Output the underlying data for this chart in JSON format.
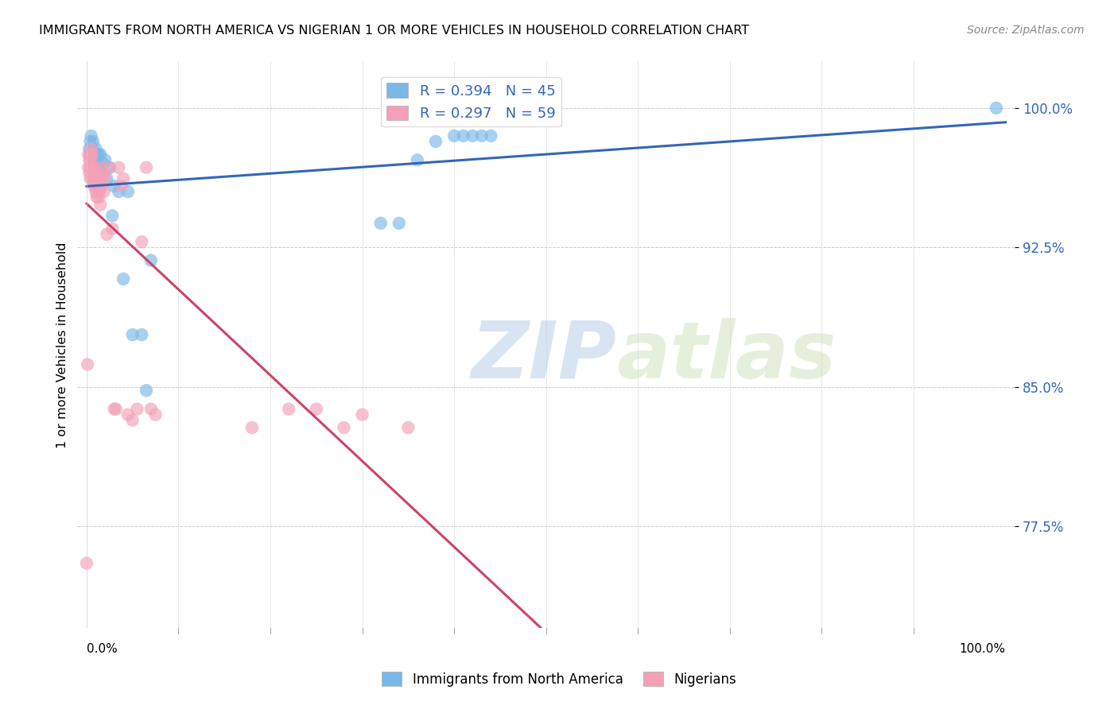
{
  "title": "IMMIGRANTS FROM NORTH AMERICA VS NIGERIAN 1 OR MORE VEHICLES IN HOUSEHOLD CORRELATION CHART",
  "source": "Source: ZipAtlas.com",
  "ylabel": "1 or more Vehicles in Household",
  "y_tick_labels": [
    "77.5%",
    "85.0%",
    "92.5%",
    "100.0%"
  ],
  "y_tick_values": [
    0.775,
    0.85,
    0.925,
    1.0
  ],
  "legend_blue_label": "R = 0.394   N = 45",
  "legend_pink_label": "R = 0.297   N = 59",
  "watermark_zip": "ZIP",
  "watermark_atlas": "atlas",
  "blue_color": "#7ab8e8",
  "pink_color": "#f4a0b8",
  "blue_line_color": "#3366bb",
  "pink_line_color": "#cc4466",
  "blue_scatter_x": [
    0.003,
    0.004,
    0.004,
    0.005,
    0.005,
    0.006,
    0.006,
    0.007,
    0.007,
    0.008,
    0.008,
    0.009,
    0.009,
    0.01,
    0.01,
    0.011,
    0.011,
    0.012,
    0.013,
    0.014,
    0.015,
    0.016,
    0.018,
    0.02,
    0.022,
    0.025,
    0.028,
    0.03,
    0.035,
    0.04,
    0.045,
    0.05,
    0.06,
    0.065,
    0.07,
    0.32,
    0.34,
    0.36,
    0.38,
    0.4,
    0.41,
    0.42,
    0.43,
    0.44,
    0.99
  ],
  "blue_scatter_y": [
    0.978,
    0.982,
    0.975,
    0.985,
    0.972,
    0.978,
    0.968,
    0.975,
    0.982,
    0.968,
    0.975,
    0.972,
    0.965,
    0.978,
    0.972,
    0.968,
    0.975,
    0.965,
    0.975,
    0.968,
    0.975,
    0.965,
    0.97,
    0.972,
    0.962,
    0.968,
    0.942,
    0.958,
    0.955,
    0.908,
    0.955,
    0.878,
    0.878,
    0.848,
    0.918,
    0.938,
    0.938,
    0.972,
    0.982,
    0.985,
    0.985,
    0.985,
    0.985,
    0.985,
    1.0
  ],
  "pink_scatter_x": [
    0.0,
    0.001,
    0.002,
    0.002,
    0.003,
    0.003,
    0.004,
    0.004,
    0.004,
    0.005,
    0.005,
    0.005,
    0.006,
    0.006,
    0.006,
    0.007,
    0.007,
    0.008,
    0.008,
    0.009,
    0.009,
    0.01,
    0.01,
    0.011,
    0.011,
    0.012,
    0.012,
    0.013,
    0.013,
    0.014,
    0.014,
    0.015,
    0.015,
    0.016,
    0.017,
    0.018,
    0.019,
    0.02,
    0.022,
    0.025,
    0.028,
    0.03,
    0.032,
    0.035,
    0.038,
    0.04,
    0.045,
    0.05,
    0.055,
    0.06,
    0.065,
    0.07,
    0.075,
    0.18,
    0.22,
    0.25,
    0.28,
    0.3,
    0.35
  ],
  "pink_scatter_y": [
    0.755,
    0.862,
    0.968,
    0.975,
    0.965,
    0.972,
    0.968,
    0.975,
    0.962,
    0.965,
    0.972,
    0.978,
    0.962,
    0.968,
    0.975,
    0.962,
    0.968,
    0.958,
    0.965,
    0.958,
    0.965,
    0.955,
    0.962,
    0.952,
    0.962,
    0.958,
    0.965,
    0.952,
    0.962,
    0.955,
    0.962,
    0.948,
    0.958,
    0.968,
    0.958,
    0.965,
    0.955,
    0.962,
    0.932,
    0.968,
    0.935,
    0.838,
    0.838,
    0.968,
    0.958,
    0.962,
    0.835,
    0.832,
    0.838,
    0.928,
    0.968,
    0.838,
    0.835,
    0.828,
    0.838,
    0.838,
    0.828,
    0.835,
    0.828
  ],
  "ylim": [
    0.72,
    1.025
  ],
  "xlim": [
    -0.01,
    1.01
  ],
  "figsize": [
    14.06,
    8.92
  ],
  "dpi": 100,
  "bottom_legend_label1": "Immigrants from North America",
  "bottom_legend_label2": "Nigerians"
}
